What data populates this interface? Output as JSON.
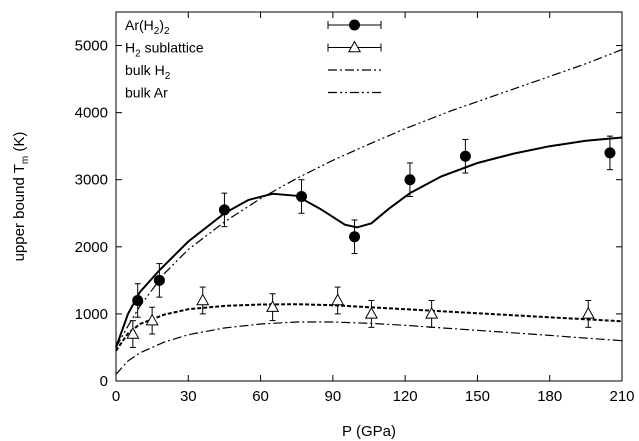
{
  "chart_data": {
    "type": "scatter",
    "xlabel": "P (GPa)",
    "ylabel": {
      "main": "upper bound T",
      "subscript": "m",
      "unit": " (K)"
    },
    "xlim": [
      0,
      210
    ],
    "ylim": [
      0,
      5500
    ],
    "xticks": [
      "0",
      "30",
      "60",
      "90",
      "120",
      "150",
      "180",
      "210"
    ],
    "yticks": [
      "0",
      "1000",
      "2000",
      "3000",
      "4000",
      "5000"
    ],
    "xtick_values": [
      0,
      30,
      60,
      90,
      120,
      150,
      180,
      210
    ],
    "ytick_values": [
      0,
      1000,
      2000,
      3000,
      4000,
      5000
    ],
    "grid": false,
    "legend_position": "top-left",
    "legend": [
      {
        "pre": "Ar(H",
        "sub": "2",
        "post": ")",
        "sub2": "2",
        "style": "filled-circle-errorbar"
      },
      {
        "pre": "H",
        "sub": "2",
        "post": " sublattice",
        "sub2": "",
        "style": "open-triangle-errorbar"
      },
      {
        "pre": "bulk H",
        "sub": "2",
        "post": "",
        "sub2": "",
        "style": "dash-dot"
      },
      {
        "pre": "bulk Ar",
        "sub": "",
        "post": "",
        "sub2": "",
        "style": "dash-dot-dot"
      }
    ],
    "series": [
      {
        "name": "Ar(H2)2",
        "marker": "filled-circle",
        "points": [
          {
            "x": 9,
            "y": 1200,
            "err": 250
          },
          {
            "x": 18,
            "y": 1500,
            "err": 250
          },
          {
            "x": 45,
            "y": 2550,
            "err": 250
          },
          {
            "x": 77,
            "y": 2750,
            "err": 250
          },
          {
            "x": 99,
            "y": 2150,
            "err": 250
          },
          {
            "x": 122,
            "y": 3000,
            "err": 250
          },
          {
            "x": 145,
            "y": 3350,
            "err": 250
          },
          {
            "x": 205,
            "y": 3400,
            "err": 250
          }
        ],
        "fit": [
          [
            0,
            500
          ],
          [
            5,
            1000
          ],
          [
            10,
            1330
          ],
          [
            18,
            1650
          ],
          [
            30,
            2080
          ],
          [
            45,
            2500
          ],
          [
            55,
            2700
          ],
          [
            65,
            2790
          ],
          [
            75,
            2760
          ],
          [
            85,
            2560
          ],
          [
            95,
            2330
          ],
          [
            100,
            2290
          ],
          [
            106,
            2350
          ],
          [
            113,
            2560
          ],
          [
            122,
            2800
          ],
          [
            135,
            3050
          ],
          [
            150,
            3250
          ],
          [
            165,
            3390
          ],
          [
            180,
            3500
          ],
          [
            195,
            3580
          ],
          [
            210,
            3630
          ]
        ]
      },
      {
        "name": "H2 sublattice",
        "marker": "open-triangle",
        "points": [
          {
            "x": 7,
            "y": 700,
            "err": 200
          },
          {
            "x": 15,
            "y": 900,
            "err": 200
          },
          {
            "x": 36,
            "y": 1200,
            "err": 200
          },
          {
            "x": 65,
            "y": 1100,
            "err": 200
          },
          {
            "x": 92,
            "y": 1200,
            "err": 200
          },
          {
            "x": 106,
            "y": 1000,
            "err": 200
          },
          {
            "x": 131,
            "y": 1000,
            "err": 200
          },
          {
            "x": 196,
            "y": 1000,
            "err": 200
          }
        ],
        "fit": [
          [
            0,
            450
          ],
          [
            5,
            710
          ],
          [
            10,
            850
          ],
          [
            20,
            990
          ],
          [
            30,
            1070
          ],
          [
            45,
            1120
          ],
          [
            60,
            1140
          ],
          [
            75,
            1145
          ],
          [
            90,
            1130
          ],
          [
            105,
            1100
          ],
          [
            120,
            1070
          ],
          [
            140,
            1030
          ],
          [
            160,
            990
          ],
          [
            180,
            950
          ],
          [
            195,
            920
          ],
          [
            210,
            890
          ]
        ]
      },
      {
        "name": "bulk H2",
        "line": "dash-dot",
        "points": [
          [
            0,
            100
          ],
          [
            5,
            300
          ],
          [
            10,
            420
          ],
          [
            20,
            580
          ],
          [
            30,
            690
          ],
          [
            45,
            790
          ],
          [
            60,
            850
          ],
          [
            75,
            880
          ],
          [
            90,
            880
          ],
          [
            105,
            860
          ],
          [
            120,
            830
          ],
          [
            140,
            780
          ],
          [
            160,
            730
          ],
          [
            180,
            680
          ],
          [
            195,
            640
          ],
          [
            210,
            600
          ]
        ]
      },
      {
        "name": "bulk Ar",
        "line": "dash-dot-dot",
        "points": [
          [
            0,
            500
          ],
          [
            5,
            820
          ],
          [
            10,
            1120
          ],
          [
            20,
            1600
          ],
          [
            30,
            1960
          ],
          [
            45,
            2370
          ],
          [
            60,
            2720
          ],
          [
            75,
            3020
          ],
          [
            90,
            3290
          ],
          [
            105,
            3530
          ],
          [
            120,
            3760
          ],
          [
            140,
            4040
          ],
          [
            160,
            4290
          ],
          [
            180,
            4540
          ],
          [
            195,
            4730
          ],
          [
            210,
            4940
          ]
        ]
      }
    ]
  }
}
